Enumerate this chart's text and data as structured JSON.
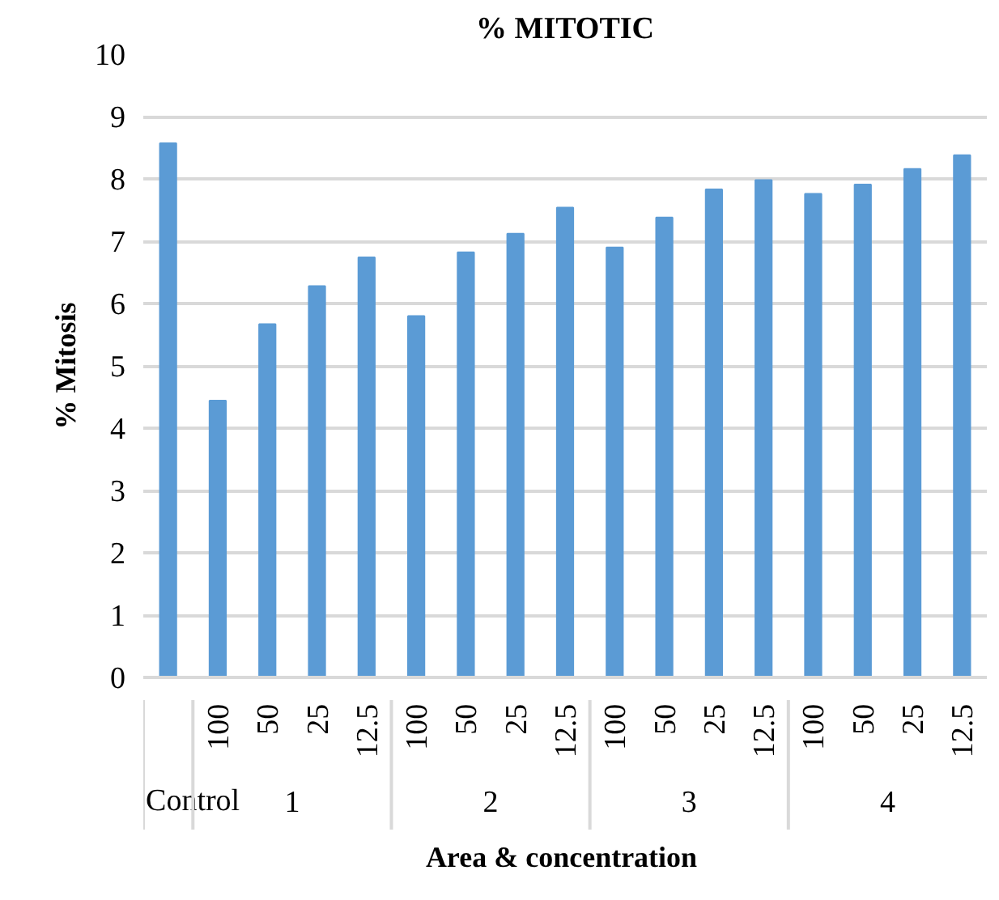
{
  "chart_data": {
    "type": "bar",
    "title": "% MITOTIC",
    "xlabel": "Area  & concentration",
    "ylabel": "% Mitosis",
    "categories": [
      null,
      "100",
      "50",
      "25",
      "12.5",
      "100",
      "50",
      "25",
      "12.5",
      "100",
      "50",
      "25",
      "12.5",
      "100",
      "50",
      "25",
      "12.5"
    ],
    "annotations": [
      "Control",
      "1",
      "2",
      "3",
      "4"
    ],
    "values": [
      8.57,
      4.44,
      5.67,
      6.28,
      6.74,
      5.8,
      6.82,
      7.12,
      7.54,
      6.9,
      7.38,
      7.83,
      7.98,
      7.76,
      7.91,
      8.16,
      8.38
    ],
    "color": "#5b9bd5",
    "ylim": [
      0,
      10
    ],
    "yticks": [
      0,
      1,
      2,
      3,
      4,
      5,
      6,
      7,
      8,
      9,
      10
    ],
    "grid": "y"
  }
}
